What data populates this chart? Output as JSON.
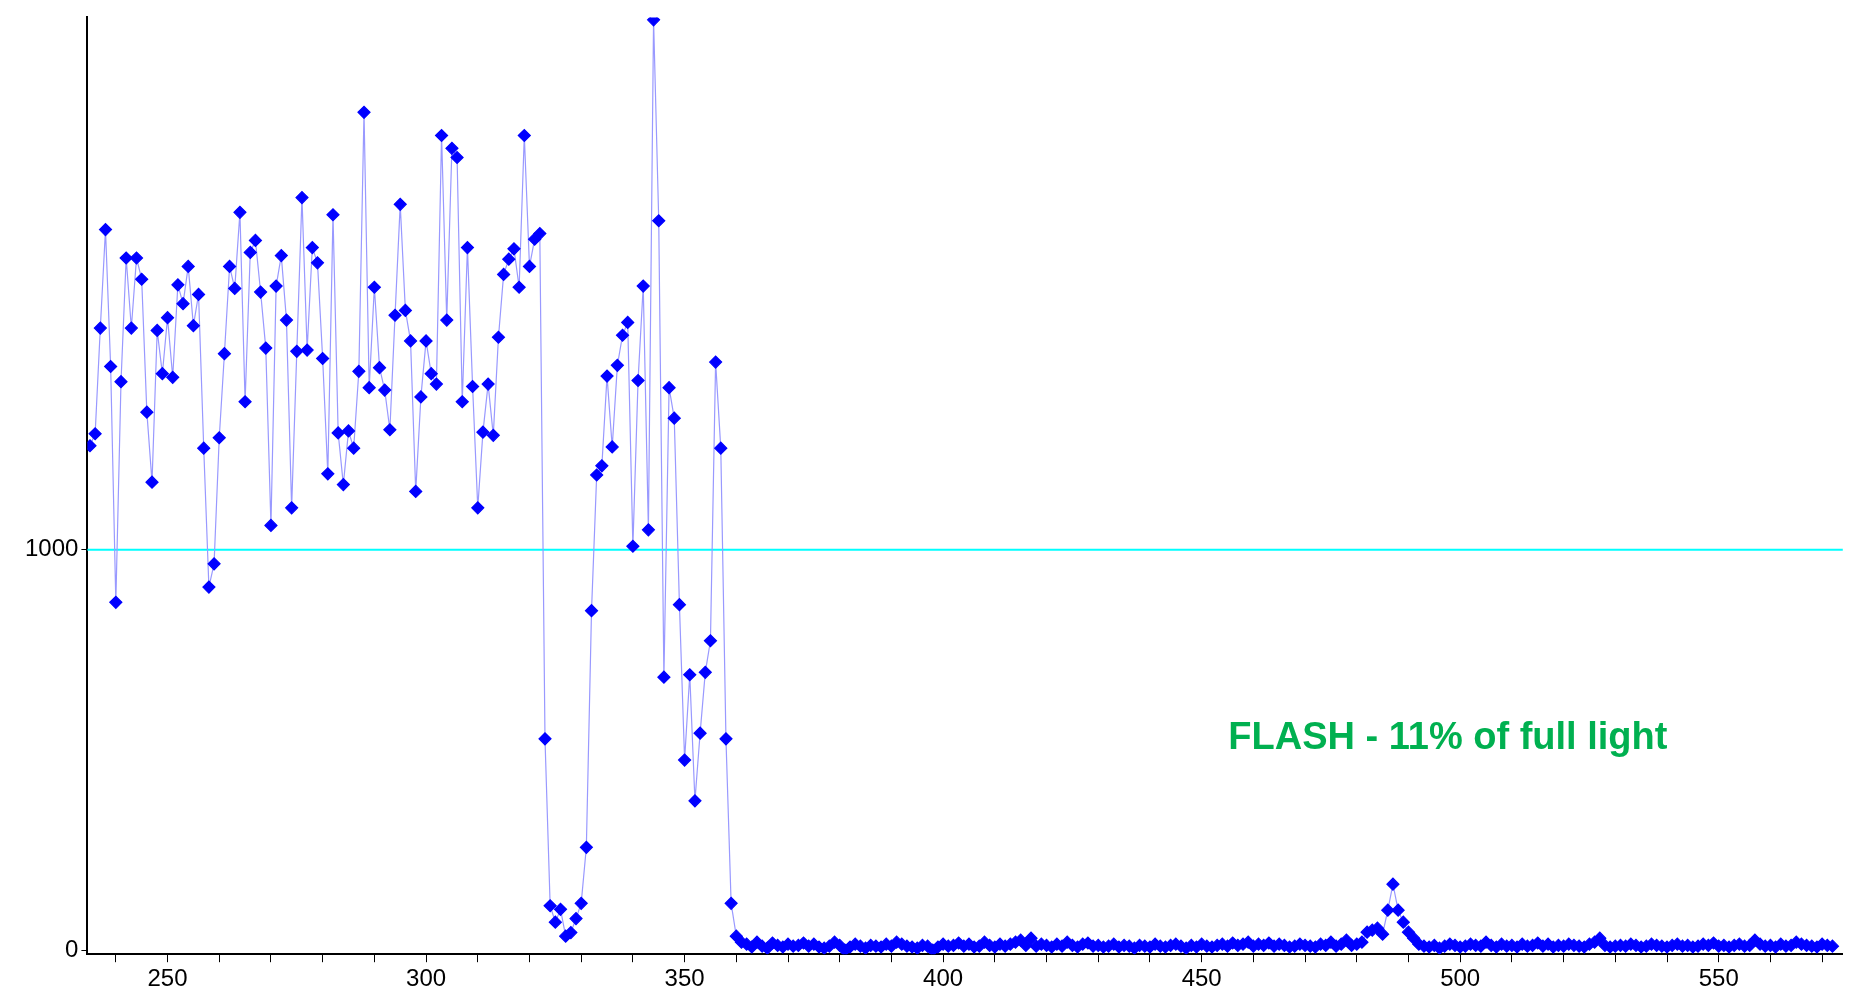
{
  "chart_data": {
    "type": "line",
    "marker": "diamond",
    "grid": false,
    "legend": false,
    "annotations": [
      "FLASH - 11% of full light"
    ],
    "xlim": [
      234.5,
      574
    ],
    "ylim": [
      -10,
      2330
    ],
    "xticks": [
      {
        "value": 240,
        "label": null
      },
      250,
      {
        "value": 260,
        "label": null
      },
      {
        "value": 270,
        "label": null
      },
      {
        "value": 280,
        "label": null
      },
      {
        "value": 290,
        "label": null
      },
      300,
      {
        "value": 310,
        "label": null
      },
      {
        "value": 320,
        "label": null
      },
      {
        "value": 330,
        "label": null
      },
      {
        "value": 340,
        "label": null
      },
      350,
      {
        "value": 360,
        "label": null
      },
      {
        "value": 370,
        "label": null
      },
      {
        "value": 380,
        "label": null
      },
      {
        "value": 390,
        "label": null
      },
      400,
      {
        "value": 410,
        "label": null
      },
      {
        "value": 420,
        "label": null
      },
      {
        "value": 430,
        "label": null
      },
      {
        "value": 440,
        "label": null
      },
      450,
      {
        "value": 460,
        "label": null
      },
      {
        "value": 470,
        "label": null
      },
      {
        "value": 480,
        "label": null
      },
      {
        "value": 490,
        "label": null
      },
      500,
      {
        "value": 510,
        "label": null
      },
      {
        "value": 520,
        "label": null
      },
      {
        "value": 530,
        "label": null
      },
      {
        "value": 540,
        "label": null
      },
      550,
      {
        "value": 560,
        "label": null
      },
      {
        "value": 570,
        "label": null
      }
    ],
    "yticks": [
      0,
      1000
    ],
    "ref_lines": [
      {
        "axis": "y",
        "value": 1000,
        "color": "#00ffff"
      }
    ],
    "x": [
      235,
      236,
      237,
      238,
      239,
      240,
      241,
      242,
      243,
      244,
      245,
      246,
      247,
      248,
      249,
      250,
      251,
      252,
      253,
      254,
      255,
      256,
      257,
      258,
      259,
      260,
      261,
      262,
      263,
      264,
      265,
      266,
      267,
      268,
      269,
      270,
      271,
      272,
      273,
      274,
      275,
      276,
      277,
      278,
      279,
      280,
      281,
      282,
      283,
      284,
      285,
      286,
      287,
      288,
      289,
      290,
      291,
      292,
      293,
      294,
      295,
      296,
      297,
      298,
      299,
      300,
      301,
      302,
      303,
      304,
      305,
      306,
      307,
      308,
      309,
      310,
      311,
      312,
      313,
      314,
      315,
      316,
      317,
      318,
      319,
      320,
      321,
      322,
      323,
      324,
      325,
      326,
      327,
      328,
      329,
      330,
      331,
      332,
      333,
      334,
      335,
      336,
      337,
      338,
      339,
      340,
      341,
      342,
      343,
      344,
      345,
      346,
      347,
      348,
      349,
      350,
      351,
      352,
      353,
      354,
      355,
      356,
      357,
      358,
      359,
      360,
      361,
      362,
      363,
      364,
      365,
      366,
      367,
      368,
      369,
      370,
      371,
      372,
      373,
      374,
      375,
      376,
      377,
      378,
      379,
      380,
      381,
      382,
      383,
      384,
      385,
      386,
      387,
      388,
      389,
      390,
      391,
      392,
      393,
      394,
      395,
      396,
      397,
      398,
      399,
      400,
      401,
      402,
      403,
      404,
      405,
      406,
      407,
      408,
      409,
      410,
      411,
      412,
      413,
      414,
      415,
      416,
      417,
      418,
      419,
      420,
      421,
      422,
      423,
      424,
      425,
      426,
      427,
      428,
      429,
      430,
      431,
      432,
      433,
      434,
      435,
      436,
      437,
      438,
      439,
      440,
      441,
      442,
      443,
      444,
      445,
      446,
      447,
      448,
      449,
      450,
      451,
      452,
      453,
      454,
      455,
      456,
      457,
      458,
      459,
      460,
      461,
      462,
      463,
      464,
      465,
      466,
      467,
      468,
      469,
      470,
      471,
      472,
      473,
      474,
      475,
      476,
      477,
      478,
      479,
      480,
      481,
      482,
      483,
      484,
      485,
      486,
      487,
      488,
      489,
      490,
      491,
      492,
      493,
      494,
      495,
      496,
      497,
      498,
      499,
      500,
      501,
      502,
      503,
      504,
      505,
      506,
      507,
      508,
      509,
      510,
      511,
      512,
      513,
      514,
      515,
      516,
      517,
      518,
      519,
      520,
      521,
      522,
      523,
      524,
      525,
      526,
      527,
      528,
      529,
      530,
      531,
      532,
      533,
      534,
      535,
      536,
      537,
      538,
      539,
      540,
      541,
      542,
      543,
      544,
      545,
      546,
      547,
      548,
      549,
      550,
      551,
      552,
      553,
      554,
      555,
      556,
      557,
      558,
      559,
      560,
      561,
      562,
      563,
      564,
      565,
      566,
      567,
      568,
      569,
      570,
      571,
      572
    ],
    "series": [
      {
        "color": "#0000ff",
        "values": [
          1260,
          1290,
          1554,
          1800,
          1458,
          869,
          1420,
          1729,
          1554,
          1729,
          1676,
          1344,
          1169,
          1548,
          1440,
          1580,
          1431,
          1662,
          1615,
          1708,
          1560,
          1638,
          1254,
          907,
          965,
          1280,
          1490,
          1708,
          1653,
          1843,
          1370,
          1743,
          1773,
          1644,
          1504,
          1061,
          1659,
          1735,
          1574,
          1105,
          1496,
          1880,
          1499,
          1755,
          1717,
          1478,
          1190,
          1837,
          1292,
          1163,
          1297,
          1254,
          1446,
          2093,
          1405,
          1656,
          1455,
          1399,
          1300,
          1586,
          1863,
          1598,
          1522,
          1146,
          1382,
          1522,
          1440,
          1414,
          2035,
          1574,
          2003,
          1980,
          1370,
          1755,
          1408,
          1105,
          1294,
          1414,
          1286,
          1531,
          1688,
          1726,
          1752,
          1656,
          2035,
          1708,
          1776,
          1790,
          528,
          111,
          70,
          102,
          35,
          44,
          79,
          117,
          257,
          848,
          1187,
          1210,
          1434,
          1257,
          1461,
          1536,
          1568,
          1009,
          1423,
          1659,
          1050,
          2324,
          1822,
          682,
          1405,
          1329,
          863,
          475,
          688,
          373,
          542,
          694,
          773,
          1469,
          1254,
          528,
          117,
          35,
          20,
          15,
          8,
          20,
          10,
          5,
          18,
          12,
          8,
          15,
          10,
          12,
          18,
          10,
          15,
          8,
          5,
          10,
          20,
          12,
          0,
          8,
          15,
          10,
          5,
          12,
          10,
          8,
          15,
          10,
          20,
          15,
          10,
          8,
          5,
          12,
          10,
          0,
          8,
          15,
          10,
          12,
          18,
          10,
          15,
          8,
          10,
          20,
          12,
          8,
          15,
          10,
          15,
          20,
          25,
          12,
          30,
          10,
          15,
          12,
          8,
          15,
          10,
          20,
          12,
          8,
          15,
          18,
          10,
          12,
          8,
          10,
          15,
          8,
          12,
          10,
          5,
          12,
          10,
          8,
          15,
          10,
          8,
          12,
          15,
          10,
          5,
          12,
          8,
          15,
          10,
          8,
          12,
          15,
          10,
          18,
          12,
          15,
          20,
          10,
          15,
          12,
          18,
          10,
          15,
          12,
          8,
          10,
          15,
          12,
          10,
          8,
          15,
          12,
          20,
          10,
          15,
          25,
          12,
          15,
          20,
          45,
          50,
          55,
          40,
          100,
          165,
          100,
          70,
          45,
          30,
          15,
          10,
          8,
          12,
          5,
          10,
          15,
          12,
          8,
          10,
          15,
          12,
          10,
          20,
          12,
          8,
          15,
          10,
          12,
          8,
          15,
          10,
          12,
          18,
          10,
          15,
          8,
          12,
          10,
          15,
          12,
          10,
          8,
          15,
          20,
          30,
          12,
          8,
          10,
          12,
          10,
          15,
          12,
          8,
          10,
          15,
          12,
          10,
          8,
          12,
          15,
          10,
          12,
          8,
          10,
          15,
          12,
          18,
          10,
          12,
          8,
          12,
          15,
          10,
          12,
          25,
          15,
          10,
          12,
          8,
          15,
          10,
          12,
          20,
          15,
          12,
          10,
          8,
          15,
          12,
          10
        ]
      }
    ]
  }
}
